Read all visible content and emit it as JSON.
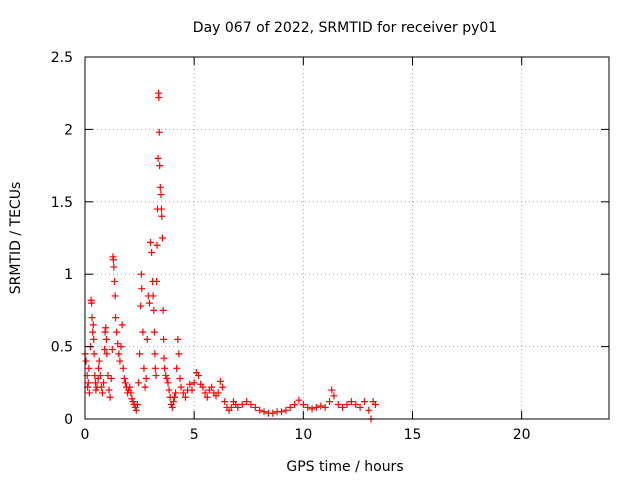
{
  "chart_data": {
    "type": "scatter",
    "title": "Day 067 of 2022, SRMTID for receiver py01",
    "xlabel": "GPS time / hours",
    "ylabel": "SRMTID / TECUs",
    "xlim": [
      0,
      24
    ],
    "ylim": [
      0,
      2.5
    ],
    "x_ticks": [
      0,
      5,
      10,
      15,
      20
    ],
    "x_tick_labels": [
      "0",
      "5",
      "10",
      "15",
      "20"
    ],
    "y_ticks": [
      0,
      0.5,
      1,
      1.5,
      2,
      2.5
    ],
    "y_tick_labels": [
      "0",
      "0.5",
      "1",
      "1.5",
      "2",
      "2.5"
    ],
    "grid": true,
    "marker": "plus",
    "color": "#ff0000",
    "series": [
      {
        "name": "py01",
        "points": [
          [
            0.0,
            0.45
          ],
          [
            0.05,
            0.4
          ],
          [
            0.1,
            0.3
          ],
          [
            0.12,
            0.22
          ],
          [
            0.15,
            0.25
          ],
          [
            0.18,
            0.35
          ],
          [
            0.2,
            0.18
          ],
          [
            0.25,
            0.5
          ],
          [
            0.28,
            0.82
          ],
          [
            0.3,
            0.8
          ],
          [
            0.32,
            0.7
          ],
          [
            0.35,
            0.6
          ],
          [
            0.38,
            0.65
          ],
          [
            0.4,
            0.55
          ],
          [
            0.42,
            0.45
          ],
          [
            0.45,
            0.3
          ],
          [
            0.48,
            0.25
          ],
          [
            0.5,
            0.2
          ],
          [
            0.55,
            0.22
          ],
          [
            0.6,
            0.28
          ],
          [
            0.62,
            0.35
          ],
          [
            0.65,
            0.4
          ],
          [
            0.7,
            0.3
          ],
          [
            0.75,
            0.22
          ],
          [
            0.8,
            0.18
          ],
          [
            0.85,
            0.25
          ],
          [
            0.9,
            0.48
          ],
          [
            0.92,
            0.6
          ],
          [
            0.95,
            0.63
          ],
          [
            0.98,
            0.55
          ],
          [
            1.0,
            0.45
          ],
          [
            1.05,
            0.3
          ],
          [
            1.1,
            0.2
          ],
          [
            1.15,
            0.15
          ],
          [
            1.2,
            0.28
          ],
          [
            1.25,
            0.48
          ],
          [
            1.28,
            1.12
          ],
          [
            1.3,
            1.1
          ],
          [
            1.32,
            1.05
          ],
          [
            1.35,
            0.95
          ],
          [
            1.38,
            0.85
          ],
          [
            1.4,
            0.7
          ],
          [
            1.45,
            0.6
          ],
          [
            1.5,
            0.52
          ],
          [
            1.55,
            0.45
          ],
          [
            1.6,
            0.4
          ],
          [
            1.65,
            0.5
          ],
          [
            1.7,
            0.65
          ],
          [
            1.75,
            0.35
          ],
          [
            1.8,
            0.28
          ],
          [
            1.85,
            0.25
          ],
          [
            1.9,
            0.22
          ],
          [
            1.95,
            0.18
          ],
          [
            2.0,
            0.2
          ],
          [
            2.05,
            0.22
          ],
          [
            2.1,
            0.18
          ],
          [
            2.15,
            0.14
          ],
          [
            2.2,
            0.12
          ],
          [
            2.25,
            0.1
          ],
          [
            2.3,
            0.08
          ],
          [
            2.35,
            0.06
          ],
          [
            2.4,
            0.1
          ],
          [
            2.45,
            0.25
          ],
          [
            2.5,
            0.45
          ],
          [
            2.55,
            0.78
          ],
          [
            2.58,
            1.0
          ],
          [
            2.6,
            0.9
          ],
          [
            2.65,
            0.6
          ],
          [
            2.7,
            0.35
          ],
          [
            2.75,
            0.22
          ],
          [
            2.8,
            0.28
          ],
          [
            2.85,
            0.55
          ],
          [
            2.9,
            0.85
          ],
          [
            2.95,
            0.8
          ],
          [
            3.0,
            1.22
          ],
          [
            3.05,
            1.15
          ],
          [
            3.1,
            0.95
          ],
          [
            3.12,
            0.85
          ],
          [
            3.15,
            0.75
          ],
          [
            3.18,
            0.6
          ],
          [
            3.2,
            0.45
          ],
          [
            3.22,
            0.35
          ],
          [
            3.25,
            0.3
          ],
          [
            3.28,
            0.95
          ],
          [
            3.3,
            1.2
          ],
          [
            3.32,
            1.45
          ],
          [
            3.35,
            1.8
          ],
          [
            3.37,
            2.25
          ],
          [
            3.38,
            2.22
          ],
          [
            3.4,
            1.98
          ],
          [
            3.42,
            1.75
          ],
          [
            3.45,
            1.6
          ],
          [
            3.48,
            1.55
          ],
          [
            3.5,
            1.45
          ],
          [
            3.52,
            1.4
          ],
          [
            3.55,
            1.25
          ],
          [
            3.58,
            0.75
          ],
          [
            3.6,
            0.55
          ],
          [
            3.62,
            0.42
          ],
          [
            3.65,
            0.35
          ],
          [
            3.7,
            0.3
          ],
          [
            3.75,
            0.28
          ],
          [
            3.8,
            0.25
          ],
          [
            3.85,
            0.2
          ],
          [
            3.9,
            0.15
          ],
          [
            3.95,
            0.1
          ],
          [
            4.0,
            0.08
          ],
          [
            4.05,
            0.12
          ],
          [
            4.1,
            0.15
          ],
          [
            4.15,
            0.18
          ],
          [
            4.2,
            0.35
          ],
          [
            4.25,
            0.55
          ],
          [
            4.3,
            0.45
          ],
          [
            4.35,
            0.28
          ],
          [
            4.4,
            0.22
          ],
          [
            4.5,
            0.18
          ],
          [
            4.6,
            0.15
          ],
          [
            4.7,
            0.2
          ],
          [
            4.8,
            0.24
          ],
          [
            4.9,
            0.2
          ],
          [
            5.0,
            0.25
          ],
          [
            5.1,
            0.32
          ],
          [
            5.2,
            0.3
          ],
          [
            5.3,
            0.24
          ],
          [
            5.4,
            0.22
          ],
          [
            5.5,
            0.18
          ],
          [
            5.6,
            0.15
          ],
          [
            5.7,
            0.2
          ],
          [
            5.8,
            0.22
          ],
          [
            5.9,
            0.18
          ],
          [
            6.0,
            0.16
          ],
          [
            6.1,
            0.18
          ],
          [
            6.2,
            0.26
          ],
          [
            6.3,
            0.22
          ],
          [
            6.4,
            0.12
          ],
          [
            6.5,
            0.08
          ],
          [
            6.6,
            0.06
          ],
          [
            6.7,
            0.08
          ],
          [
            6.8,
            0.12
          ],
          [
            6.9,
            0.1
          ],
          [
            7.0,
            0.08
          ],
          [
            7.2,
            0.1
          ],
          [
            7.4,
            0.12
          ],
          [
            7.6,
            0.1
          ],
          [
            7.8,
            0.08
          ],
          [
            8.0,
            0.06
          ],
          [
            8.2,
            0.05
          ],
          [
            8.4,
            0.04
          ],
          [
            8.6,
            0.04
          ],
          [
            8.8,
            0.05
          ],
          [
            9.0,
            0.05
          ],
          [
            9.2,
            0.06
          ],
          [
            9.4,
            0.08
          ],
          [
            9.6,
            0.1
          ],
          [
            9.8,
            0.13
          ],
          [
            10.0,
            0.1
          ],
          [
            10.2,
            0.08
          ],
          [
            10.4,
            0.07
          ],
          [
            10.6,
            0.08
          ],
          [
            10.8,
            0.09
          ],
          [
            11.0,
            0.08
          ],
          [
            11.2,
            0.12
          ],
          [
            11.3,
            0.2
          ],
          [
            11.4,
            0.16
          ],
          [
            11.6,
            0.1
          ],
          [
            11.8,
            0.08
          ],
          [
            12.0,
            0.1
          ],
          [
            12.2,
            0.12
          ],
          [
            12.4,
            0.1
          ],
          [
            12.6,
            0.08
          ],
          [
            12.8,
            0.12
          ],
          [
            13.0,
            0.06
          ],
          [
            13.1,
            0.0
          ],
          [
            13.2,
            0.12
          ],
          [
            13.3,
            0.1
          ]
        ]
      }
    ]
  }
}
